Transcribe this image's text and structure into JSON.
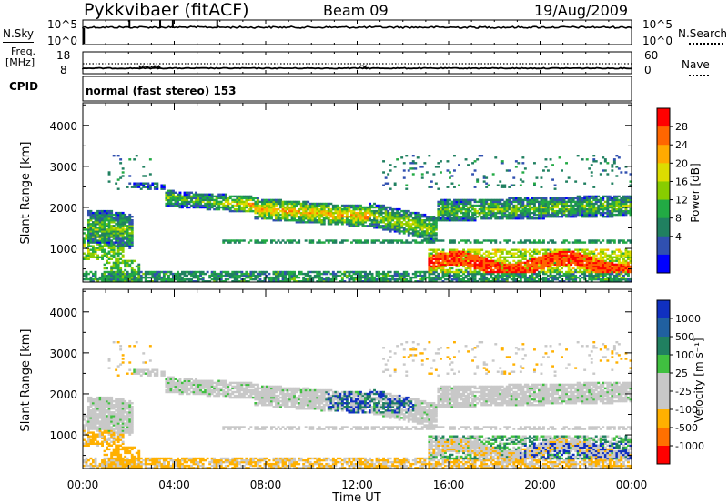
{
  "header": {
    "station": "Pykkvibaer (fitACF)",
    "beam": "Beam 09",
    "date": "19/Aug/2009"
  },
  "params": {
    "nsky_label": "N.Sky",
    "nsearch_label": "N.Search",
    "nsky_ticks": [
      "10^5",
      "10^0"
    ],
    "nsearch_ticks": [
      "10^5",
      "10^0"
    ],
    "freq_label": "Freq.",
    "freq_unit": "[MHz]",
    "freq_ticks": [
      "18",
      "8"
    ],
    "nave_label": "Nave",
    "nave_ticks": [
      "60",
      "0"
    ],
    "cpid_label": "CPID",
    "cpid_value": "normal (fast stereo) 153"
  },
  "chart_data": [
    {
      "type": "heatmap",
      "name": "power",
      "ylabel": "Slant Range [km]",
      "xlabel": "",
      "x_range": [
        "00:00",
        "24:00"
      ],
      "ylim": [
        180,
        4550
      ],
      "y_ticks": [
        "4000",
        "3000",
        "2000",
        "1000"
      ],
      "x_ticks": [
        "00:00",
        "04:00",
        "08:00",
        "12:00",
        "16:00",
        "20:00",
        "00:00"
      ],
      "colorbar": {
        "label": "Power [dB]",
        "ticks": [
          "28",
          "24",
          "20",
          "16",
          "12",
          "8",
          "4"
        ],
        "colors": [
          "#ff0000",
          "#ff6600",
          "#ffaa00",
          "#dddd00",
          "#88cc00",
          "#22aa44",
          "#208060",
          "#3050b0",
          "#0000ff"
        ]
      },
      "features": [
        {
          "band": "echo layer 1",
          "t_start_h": 0.0,
          "t_end_h": 24.0,
          "range_start_km": 2200,
          "range_end_km": 1200
        },
        {
          "band": "strong echoes",
          "t_start_h": 15.0,
          "t_end_h": 24.0,
          "range_start_km": 500,
          "range_end_km": 900
        },
        {
          "band": "ground scatter",
          "t_start_h": 0.0,
          "t_end_h": 24.0,
          "range_start_km": 300,
          "range_end_km": 300
        }
      ]
    },
    {
      "type": "heatmap",
      "name": "velocity",
      "ylabel": "Slant Range [km]",
      "xlabel": "Time UT",
      "x_range": [
        "00:00",
        "24:00"
      ],
      "ylim": [
        180,
        4550
      ],
      "y_ticks": [
        "4000",
        "3000",
        "2000",
        "1000"
      ],
      "x_ticks": [
        "00:00",
        "04:00",
        "08:00",
        "12:00",
        "16:00",
        "20:00",
        "00:00"
      ],
      "colorbar": {
        "label": "Velocity [m s⁻¹]",
        "ticks": [
          "1000",
          "500",
          "100",
          "25",
          "-25",
          "-100",
          "-500",
          "-1000"
        ],
        "colors": [
          "#1030c0",
          "#2060a0",
          "#208060",
          "#40c040",
          "#c8c8c8",
          "#c8c8c8",
          "#ffb000",
          "#ff7000",
          "#ff0000"
        ]
      }
    }
  ]
}
